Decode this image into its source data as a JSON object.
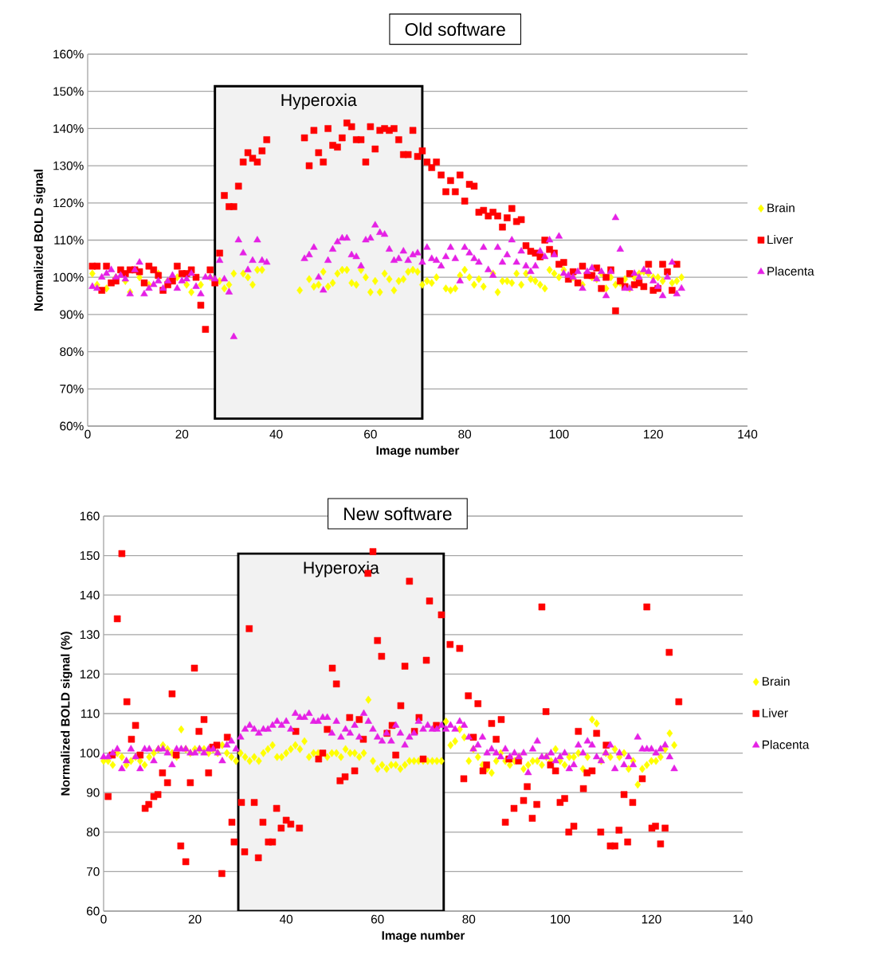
{
  "chart_data": [
    {
      "type": "scatter",
      "title": "Old software",
      "xlabel": "Image number",
      "ylabel": "Normalized BOLD signal",
      "xlim": [
        0,
        140
      ],
      "ylim": [
        60,
        160
      ],
      "xticks": [
        0,
        20,
        40,
        60,
        80,
        100,
        120,
        140
      ],
      "yticks": [
        {
          "value": 60,
          "label": "60%"
        },
        {
          "value": 70,
          "label": "70%"
        },
        {
          "value": 80,
          "label": "80%"
        },
        {
          "value": 90,
          "label": "90%"
        },
        {
          "value": 100,
          "label": "100%"
        },
        {
          "value": 110,
          "label": "110%"
        },
        {
          "value": 120,
          "label": "120%"
        },
        {
          "value": 130,
          "label": "130%"
        },
        {
          "value": 140,
          "label": "140%"
        },
        {
          "value": 150,
          "label": "150%"
        },
        {
          "value": 160,
          "label": "160%"
        }
      ],
      "grid": "y",
      "legend": "right",
      "bands": [
        {
          "axis": "x",
          "from": 27,
          "to": 71,
          "label": "Hyperoxia"
        }
      ],
      "series": [
        {
          "name": "Brain",
          "color": "#ffff00",
          "marker": "diamond",
          "x": [
            1,
            2,
            4,
            6,
            8,
            9,
            11,
            13,
            15,
            17,
            19,
            21,
            22,
            24,
            26,
            28,
            29,
            30,
            31,
            33,
            34,
            35,
            36,
            37,
            45,
            47,
            48,
            49,
            50,
            51,
            52,
            53,
            54,
            55,
            56,
            57,
            58,
            59,
            60,
            61,
            62,
            63,
            64,
            65,
            66,
            67,
            68,
            69,
            70,
            71,
            72,
            73,
            74,
            76,
            77,
            78,
            79,
            80,
            81,
            82,
            83,
            84,
            86,
            87,
            88,
            89,
            90,
            91,
            92,
            93,
            94,
            95,
            96,
            97,
            98,
            99,
            100,
            101,
            103,
            105,
            107,
            108,
            109,
            110,
            111,
            112,
            113,
            114,
            115,
            116,
            117,
            118,
            119,
            120,
            121,
            122,
            123,
            124,
            125,
            126
          ],
          "values": [
            101,
            98,
            97,
            100,
            99,
            96,
            100,
            98,
            101,
            99,
            100,
            98,
            96,
            98,
            100,
            99,
            97,
            98,
            101,
            101,
            100,
            98,
            102,
            102,
            96.5,
            99.5,
            97.5,
            98,
            101.5,
            97.5,
            98.5,
            101,
            102,
            102,
            98.5,
            98,
            102,
            100,
            96,
            99,
            96,
            101,
            99.5,
            96.5,
            99,
            99.5,
            101.5,
            102,
            101.5,
            98,
            99,
            98.5,
            100,
            97,
            96.5,
            97,
            100.5,
            102,
            100,
            98,
            99.5,
            97.5,
            101,
            96,
            99,
            99,
            98.5,
            101,
            98,
            101,
            99.5,
            99,
            98,
            97,
            102,
            101,
            100,
            102,
            100,
            98,
            100,
            99.5,
            101,
            97,
            100,
            98,
            98.5,
            99.5,
            97,
            100,
            101,
            101.5,
            101,
            100,
            100,
            99,
            101,
            98.5,
            99,
            100
          ]
        },
        {
          "name": "Liver",
          "color": "#ff0000",
          "marker": "square",
          "x": [
            1,
            2,
            3,
            4,
            5,
            6,
            7,
            8,
            9,
            10,
            11,
            12,
            13,
            14,
            15,
            16,
            17,
            18,
            19,
            20,
            21,
            22,
            23,
            24,
            25,
            26,
            27,
            28,
            29,
            30,
            31,
            32,
            33,
            34,
            35,
            36,
            37,
            38,
            46,
            47,
            48,
            49,
            50,
            51,
            52,
            53,
            54,
            55,
            56,
            57,
            58,
            59,
            60,
            61,
            62,
            63,
            64,
            65,
            66,
            67,
            68,
            69,
            70,
            71,
            72,
            73,
            74,
            75,
            76,
            77,
            78,
            79,
            80,
            81,
            82,
            83,
            84,
            85,
            86,
            87,
            88,
            89,
            90,
            91,
            92,
            93,
            94,
            95,
            96,
            97,
            98,
            99,
            100,
            101,
            102,
            103,
            104,
            105,
            106,
            107,
            108,
            109,
            110,
            111,
            112,
            113,
            114,
            115,
            116,
            117,
            118,
            119,
            120,
            121,
            122,
            123,
            124,
            125
          ],
          "values": [
            103,
            103,
            96.5,
            103,
            98.5,
            99,
            102,
            101,
            102,
            102,
            101.5,
            98.5,
            103,
            102,
            100.5,
            96.5,
            98,
            99,
            103,
            101,
            101,
            102,
            100,
            92.5,
            86,
            102,
            98.5,
            106.5,
            122,
            119,
            119,
            124.5,
            131,
            133.5,
            132,
            131,
            134,
            137,
            137.5,
            130,
            139.5,
            133.5,
            131,
            140,
            135.5,
            135,
            137.5,
            141.5,
            140.5,
            137,
            137,
            131,
            140.5,
            134.5,
            139.5,
            140,
            139.5,
            140,
            137,
            133,
            133,
            139.5,
            132.5,
            134,
            131,
            129.5,
            131,
            127.5,
            123,
            126,
            123,
            127.5,
            120.5,
            125,
            124.5,
            117.5,
            118,
            116.5,
            117.5,
            116.5,
            113.5,
            116,
            118.5,
            115,
            115.5,
            108.5,
            107,
            106.5,
            105.5,
            110,
            107.5,
            106.5,
            103.5,
            104,
            99.5,
            101.5,
            98.5,
            103,
            100.5,
            100.5,
            102.5,
            97,
            100,
            102,
            91,
            99,
            97.5,
            101,
            98,
            98.5,
            97.5,
            103.5,
            96.5,
            97,
            103.5,
            101.5,
            96.5,
            103.5
          ]
        },
        {
          "name": "Placenta",
          "color": "#e520e5",
          "marker": "triangle",
          "x": [
            1,
            2,
            3,
            4,
            5,
            6,
            7,
            8,
            9,
            10,
            11,
            12,
            13,
            14,
            15,
            16,
            17,
            18,
            19,
            20,
            21,
            22,
            23,
            24,
            25,
            26,
            27,
            28,
            29,
            30,
            31,
            32,
            33,
            34,
            35,
            36,
            37,
            38,
            46,
            47,
            48,
            49,
            50,
            51,
            52,
            53,
            54,
            55,
            56,
            57,
            58,
            59,
            60,
            61,
            62,
            63,
            64,
            65,
            66,
            67,
            68,
            69,
            70,
            71,
            72,
            73,
            74,
            75,
            76,
            77,
            78,
            79,
            80,
            81,
            82,
            83,
            84,
            85,
            86,
            87,
            88,
            89,
            90,
            91,
            92,
            93,
            94,
            95,
            96,
            97,
            98,
            99,
            100,
            101,
            102,
            103,
            104,
            105,
            106,
            107,
            108,
            109,
            110,
            111,
            112,
            113,
            114,
            115,
            116,
            117,
            118,
            119,
            120,
            121,
            122,
            123,
            124,
            125,
            126
          ],
          "values": [
            97.5,
            97,
            100,
            101,
            102,
            100,
            100.5,
            99.5,
            95.5,
            102,
            104,
            95.5,
            97,
            98,
            99,
            97,
            99,
            100.5,
            97,
            99,
            99.5,
            101,
            97.5,
            95.5,
            100,
            100,
            99.5,
            104.5,
            99.5,
            96,
            84,
            110,
            106.5,
            102,
            104.5,
            110,
            104.5,
            104,
            105,
            106,
            108,
            100,
            96.5,
            104.5,
            107.5,
            109.5,
            110.5,
            110.5,
            106,
            105.5,
            103,
            110,
            110.5,
            114,
            112,
            111.5,
            107.5,
            104.5,
            105,
            107,
            104.5,
            106,
            106.5,
            104,
            108,
            105,
            104.5,
            103,
            105.5,
            108,
            105,
            99,
            108,
            106.5,
            105,
            104,
            108,
            102,
            100.5,
            108,
            104,
            106,
            110,
            104,
            107,
            103,
            101.5,
            103,
            107,
            105.5,
            110,
            106,
            111,
            101,
            100.5,
            100,
            101.5,
            97,
            101.5,
            102.5,
            99.5,
            101.5,
            95,
            101.5,
            116,
            107.5,
            97,
            97,
            101,
            100,
            102,
            101.5,
            99,
            97.5,
            95,
            100,
            104,
            95.5,
            97
          ]
        }
      ]
    },
    {
      "type": "scatter",
      "title": "New software",
      "xlabel": "Image number",
      "ylabel": "Normalized BOLD signal (%)",
      "xlim": [
        0,
        140
      ],
      "ylim": [
        60,
        160
      ],
      "xticks": [
        0,
        20,
        40,
        60,
        80,
        100,
        120,
        140
      ],
      "yticks": [
        60,
        70,
        80,
        90,
        100,
        110,
        120,
        130,
        140,
        150,
        160
      ],
      "grid": "y",
      "legend": "right",
      "bands": [
        {
          "axis": "x",
          "from": 29.5,
          "to": 74.5,
          "label": "Hyperoxia"
        }
      ],
      "series": [
        {
          "name": "Brain",
          "color": "#ffff00",
          "marker": "diamond",
          "x": [
            0,
            1,
            2,
            3,
            4,
            5,
            6,
            7,
            8,
            9,
            10,
            11,
            12,
            13,
            14,
            15,
            16,
            17,
            18,
            19,
            20,
            21,
            22,
            23,
            24,
            25,
            26,
            27,
            28,
            29,
            30,
            31,
            32,
            33,
            34,
            35,
            36,
            37,
            38,
            39,
            40,
            41,
            42,
            43,
            44,
            45,
            46,
            47,
            48,
            49,
            50,
            51,
            52,
            53,
            54,
            55,
            56,
            57,
            58,
            59,
            60,
            61,
            62,
            63,
            64,
            65,
            66,
            67,
            68,
            69,
            70,
            71,
            72,
            73,
            74,
            75,
            76,
            77,
            78,
            79,
            80,
            81,
            82,
            83,
            84,
            85,
            86,
            87,
            88,
            89,
            90,
            91,
            92,
            93,
            94,
            95,
            96,
            97,
            98,
            99,
            100,
            101,
            102,
            103,
            104,
            105,
            106,
            107,
            108,
            109,
            110,
            111,
            112,
            113,
            114,
            115,
            116,
            117,
            118,
            119,
            120,
            121,
            122,
            123,
            124,
            125
          ],
          "values": [
            98,
            98,
            97,
            100,
            99,
            97,
            98,
            99,
            98,
            97,
            99,
            100,
            101,
            102,
            101,
            100,
            99,
            106,
            101,
            100,
            101,
            101,
            101,
            100,
            101,
            100,
            102,
            100,
            99,
            98,
            100,
            99,
            98,
            99,
            98,
            100,
            101,
            102,
            99,
            99,
            100,
            101,
            102,
            101,
            103,
            99,
            100,
            100,
            null,
            99,
            100,
            100,
            99,
            101,
            100,
            100,
            99,
            100,
            113.5,
            98,
            96,
            97,
            96,
            97,
            97,
            96,
            97,
            98,
            98,
            98,
            98,
            98,
            98,
            98,
            98,
            108,
            102,
            103,
            106,
            104,
            98,
            101,
            99,
            97,
            96,
            95,
            98,
            100,
            98,
            97,
            98,
            99,
            96,
            97,
            98,
            98,
            97,
            99,
            98,
            101,
            98,
            97,
            99,
            99,
            100,
            96,
            99,
            108.5,
            107.5,
            98,
            100,
            99,
            101,
            99,
            100,
            96,
            98,
            92,
            96,
            97,
            98,
            98,
            99,
            101,
            105,
            102
          ]
        },
        {
          "name": "Liver",
          "color": "#ff0000",
          "marker": "square",
          "x": [
            1.0,
            1.9,
            3.0,
            4.0,
            5.1,
            6.1,
            7.0,
            8.0,
            9.1,
            9.9,
            11.0,
            11.9,
            12.9,
            14.0,
            15.0,
            15.9,
            16.9,
            18.0,
            19.0,
            19.9,
            20.9,
            22.0,
            23.0,
            23.9,
            24.8,
            25.9,
            27.1,
            28.1,
            28.6,
            30.2,
            30.9,
            31.9,
            33.0,
            33.9,
            34.9,
            36.1,
            37.0,
            37.9,
            38.9,
            40.0,
            41.0,
            42.1,
            42.9,
            47.1,
            48.0,
            49.0,
            50.1,
            51.0,
            51.8,
            52.9,
            53.9,
            55.0,
            56.0,
            56.9,
            57.9,
            59.0,
            60.0,
            60.9,
            62.1,
            63.2,
            64.0,
            65.1,
            66.0,
            67.0,
            68.1,
            69.1,
            70.0,
            70.7,
            71.4,
            72.9,
            74.0,
            75.9,
            78.0,
            78.9,
            79.9,
            81.0,
            82.0,
            83.1,
            83.9,
            85.0,
            86.0,
            87.1,
            88.0,
            88.8,
            89.9,
            90.9,
            92.0,
            92.8,
            93.9,
            94.9,
            96.0,
            96.9,
            97.9,
            99.0,
            100.0,
            101.0,
            101.9,
            103.0,
            104.0,
            105.1,
            105.9,
            107.0,
            108.0,
            108.9,
            110.1,
            111.0,
            112.0,
            112.9,
            114.0,
            114.8,
            115.9,
            118.0,
            119.0,
            120.1,
            120.9,
            122.0,
            123.0,
            123.9,
            126.0
          ],
          "values": [
            89,
            99.5,
            134,
            150.5,
            113,
            103.5,
            107,
            99.5,
            86,
            87,
            89,
            89.5,
            95,
            92.5,
            115,
            99.5,
            76.5,
            72.5,
            92.5,
            121.5,
            105.5,
            108.5,
            95,
            101.5,
            102,
            69.5,
            104,
            82.5,
            77.5,
            87.5,
            75,
            131.5,
            87.5,
            73.5,
            82.5,
            77.5,
            77.5,
            86,
            81,
            83,
            82,
            105.5,
            81,
            98.5,
            100,
            106,
            121.5,
            117.5,
            93,
            94,
            109,
            95.5,
            108.5,
            103.5,
            145.5,
            151,
            128.5,
            124.5,
            105,
            107,
            99.5,
            112,
            122,
            143.5,
            105.5,
            109,
            98.5,
            123.5,
            138.5,
            107,
            135,
            127.5,
            126.5,
            93.5,
            114.5,
            104,
            112.5,
            95.5,
            97,
            107.5,
            103.5,
            108.5,
            82.5,
            98.5,
            86,
            98,
            88,
            91.5,
            83.5,
            87,
            137,
            110.5,
            97,
            95.5,
            87.5,
            88.5,
            80,
            81.5,
            105.5,
            91,
            95,
            95.5,
            105,
            80,
            102,
            76.5,
            76.5,
            80.5,
            89.5,
            77.5,
            87.5,
            93.5,
            137,
            81,
            81.5,
            77,
            81,
            125.5,
            113
          ]
        },
        {
          "name": "Placenta",
          "color": "#e520e5",
          "marker": "triangle",
          "x": [
            0,
            1,
            2,
            3,
            4,
            5,
            6,
            7,
            8,
            9,
            10,
            11,
            12,
            13,
            14,
            15,
            16,
            17,
            18,
            19,
            20,
            21,
            22,
            23,
            24,
            25,
            26,
            27,
            28,
            29,
            30,
            31,
            32,
            33,
            34,
            35,
            36,
            37,
            38,
            39,
            40,
            41,
            42,
            43,
            44,
            45,
            46,
            47,
            48,
            49,
            50,
            51,
            52,
            53,
            54,
            55,
            56,
            57,
            58,
            59,
            60,
            61,
            62,
            63,
            64,
            65,
            66,
            67,
            68,
            69,
            70,
            71,
            72,
            73,
            74,
            75,
            76,
            77,
            78,
            79,
            80,
            81,
            82,
            83,
            84,
            85,
            86,
            87,
            88,
            89,
            90,
            91,
            92,
            93,
            94,
            95,
            96,
            97,
            98,
            99,
            100,
            101,
            102,
            103,
            104,
            105,
            106,
            107,
            108,
            109,
            110,
            111,
            112,
            113,
            114,
            115,
            116,
            117,
            118,
            119,
            120,
            121,
            122,
            123,
            124,
            125
          ],
          "values": [
            99,
            99,
            100,
            101,
            96,
            98,
            101,
            99,
            96,
            101,
            101,
            98,
            101,
            101,
            100,
            97,
            101,
            101,
            101,
            100,
            100,
            101,
            100,
            101,
            101,
            100,
            98,
            102,
            103,
            101,
            104,
            106,
            107,
            106,
            105,
            106,
            106,
            107,
            108,
            107,
            108,
            106,
            110,
            109,
            109,
            110,
            108,
            108,
            109,
            109,
            105,
            108,
            104,
            106,
            105,
            107,
            104,
            110,
            108,
            106,
            104,
            103,
            105,
            103,
            107,
            105,
            102,
            104,
            105,
            108,
            106,
            107,
            106,
            106,
            107,
            106,
            107,
            106,
            108,
            107,
            104,
            101,
            102,
            104,
            100,
            101,
            100,
            99,
            101,
            99,
            100,
            99,
            100,
            95,
            101,
            103,
            99,
            99,
            100,
            98,
            99,
            100,
            96,
            97,
            102,
            100,
            103,
            102,
            99,
            98,
            100,
            102,
            96,
            100,
            97,
            99,
            97,
            104,
            101,
            101,
            101,
            100,
            101,
            102,
            99,
            96
          ]
        }
      ]
    }
  ]
}
